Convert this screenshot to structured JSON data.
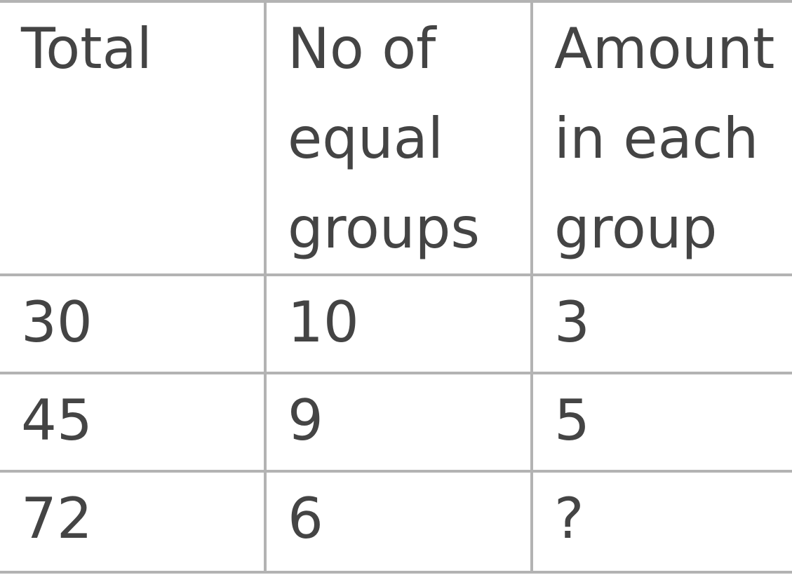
{
  "table": {
    "columns": [
      "Total",
      "No of equal groups",
      "Amount in each group"
    ],
    "rows": [
      [
        "30",
        "10",
        "3"
      ],
      [
        "45",
        "9",
        "5"
      ],
      [
        "72",
        "6",
        "?"
      ]
    ]
  }
}
